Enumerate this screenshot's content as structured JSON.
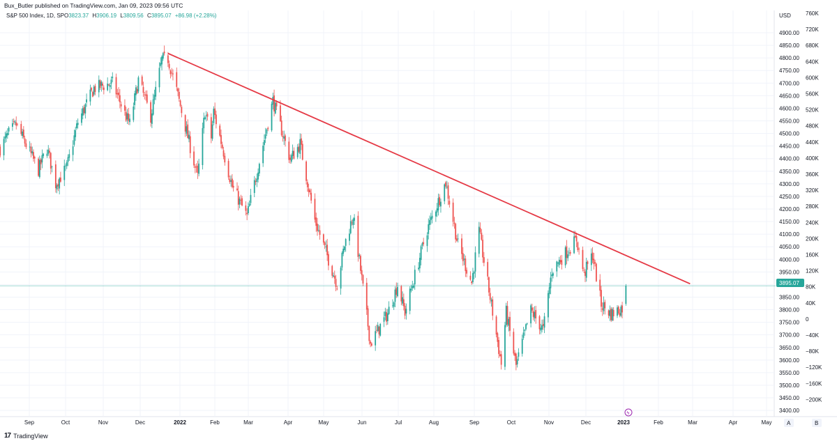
{
  "publish_line": "Bux_Butler published on TradingView.com, Jan 09, 2023 09:56 UTC",
  "footer": {
    "logo_glyph": "17",
    "brand": "TradingView"
  },
  "colors": {
    "up": "#26a69a",
    "down": "#ef5350",
    "trendline": "#e53945",
    "last_price": "#26a69a",
    "grid": "#f0f3fa",
    "event_marker": "#9c27b0"
  },
  "chart_data": {
    "type": "candlestick",
    "title": "S&P 500 Index, 1D, SP",
    "ohlc": {
      "o_label": "O",
      "o": "3823.37",
      "h_label": "H",
      "h": "3906.19",
      "l_label": "L",
      "l": "3809.56",
      "c_label": "C",
      "c": "3895.07",
      "change": "+86.98 (+2.28%)"
    },
    "currency": "USD",
    "price_ticks": [
      "4900.00",
      "4850.00",
      "4800.00",
      "4750.00",
      "4700.00",
      "4650.00",
      "4600.00",
      "4550.00",
      "4500.00",
      "4450.00",
      "4400.00",
      "4350.00",
      "4300.00",
      "4250.00",
      "4200.00",
      "4150.00",
      "4100.00",
      "4050.00",
      "4000.00",
      "3950.00",
      "3900.00",
      "3850.00",
      "3800.00",
      "3750.00",
      "3700.00",
      "3650.00",
      "3600.00",
      "3550.00",
      "3500.00",
      "3450.00",
      "3400.00"
    ],
    "volume_ticks": [
      "760K",
      "720K",
      "680K",
      "640K",
      "600K",
      "560K",
      "520K",
      "480K",
      "440K",
      "400K",
      "360K",
      "320K",
      "280K",
      "240K",
      "200K",
      "160K",
      "120K",
      "80K",
      "40K",
      "0",
      "−40K",
      "−80K",
      "−120K",
      "−160K",
      "−200K"
    ],
    "x_labels": [
      "Sep",
      "Oct",
      "Nov",
      "Dec",
      "2022",
      "Feb",
      "Mar",
      "Apr",
      "May",
      "Jun",
      "Jul",
      "Aug",
      "Sep",
      "Oct",
      "Nov",
      "Dec",
      "2023",
      "Feb",
      "Mar",
      "Apr",
      "May"
    ],
    "last_price": "3895.07",
    "axis_buttons": [
      "A",
      "B"
    ],
    "trendline": {
      "from": {
        "date": "2022-01-03",
        "price": 4818
      },
      "to": {
        "date": "2023-03-02",
        "price": 3903
      }
    },
    "anchors": [
      {
        "date": "2021-08-20",
        "price": 4440
      },
      {
        "date": "2021-08-27",
        "price": 4500
      },
      {
        "date": "2021-09-02",
        "price": 4535
      },
      {
        "date": "2021-09-20",
        "price": 4355
      },
      {
        "date": "2021-09-27",
        "price": 4443
      },
      {
        "date": "2021-10-04",
        "price": 4300
      },
      {
        "date": "2021-10-13",
        "price": 4365
      },
      {
        "date": "2021-10-22",
        "price": 4545
      },
      {
        "date": "2021-11-04",
        "price": 4680
      },
      {
        "date": "2021-11-19",
        "price": 4700
      },
      {
        "date": "2021-11-30",
        "price": 4567
      },
      {
        "date": "2021-12-03",
        "price": 4538
      },
      {
        "date": "2021-12-10",
        "price": 4712
      },
      {
        "date": "2021-12-20",
        "price": 4568
      },
      {
        "date": "2021-12-29",
        "price": 4793
      },
      {
        "date": "2022-01-03",
        "price": 4796
      },
      {
        "date": "2022-01-10",
        "price": 4670
      },
      {
        "date": "2022-01-27",
        "price": 4326
      },
      {
        "date": "2022-02-02",
        "price": 4589
      },
      {
        "date": "2022-02-07",
        "price": 4483
      },
      {
        "date": "2022-02-09",
        "price": 4587
      },
      {
        "date": "2022-02-24",
        "price": 4288
      },
      {
        "date": "2022-03-08",
        "price": 4170
      },
      {
        "date": "2022-03-29",
        "price": 4631
      },
      {
        "date": "2022-04-12",
        "price": 4397
      },
      {
        "date": "2022-04-20",
        "price": 4459
      },
      {
        "date": "2022-05-02",
        "price": 4155
      },
      {
        "date": "2022-05-20",
        "price": 3901
      },
      {
        "date": "2022-05-26",
        "price": 4057
      },
      {
        "date": "2022-06-02",
        "price": 4176
      },
      {
        "date": "2022-06-16",
        "price": 3666
      },
      {
        "date": "2022-06-30",
        "price": 3785
      },
      {
        "date": "2022-07-08",
        "price": 3899
      },
      {
        "date": "2022-07-14",
        "price": 3790
      },
      {
        "date": "2022-08-01",
        "price": 4118
      },
      {
        "date": "2022-08-16",
        "price": 4305
      },
      {
        "date": "2022-08-26",
        "price": 4057
      },
      {
        "date": "2022-09-06",
        "price": 3908
      },
      {
        "date": "2022-09-12",
        "price": 4110
      },
      {
        "date": "2022-09-30",
        "price": 3585
      },
      {
        "date": "2022-10-04",
        "price": 3790
      },
      {
        "date": "2022-10-12",
        "price": 3577
      },
      {
        "date": "2022-10-24",
        "price": 3797
      },
      {
        "date": "2022-11-03",
        "price": 3719
      },
      {
        "date": "2022-11-10",
        "price": 3956
      },
      {
        "date": "2022-11-30",
        "price": 4080
      },
      {
        "date": "2022-12-06",
        "price": 3941
      },
      {
        "date": "2022-12-13",
        "price": 4019
      },
      {
        "date": "2022-12-20",
        "price": 3821
      },
      {
        "date": "2022-12-28",
        "price": 3783
      },
      {
        "date": "2023-01-06",
        "price": 3808
      },
      {
        "date": "2023-01-09",
        "price": 3895
      }
    ]
  }
}
